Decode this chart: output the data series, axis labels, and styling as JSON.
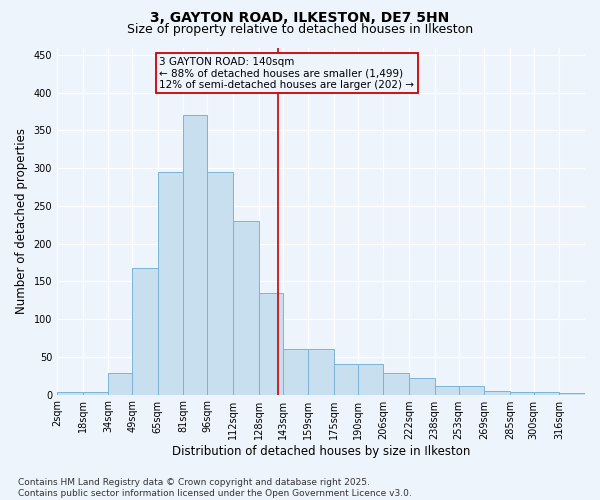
{
  "title": "3, GAYTON ROAD, ILKESTON, DE7 5HN",
  "subtitle": "Size of property relative to detached houses in Ilkeston",
  "xlabel": "Distribution of detached houses by size in Ilkeston",
  "ylabel": "Number of detached properties",
  "bar_labels": [
    "2sqm",
    "18sqm",
    "34sqm",
    "49sqm",
    "65sqm",
    "81sqm",
    "96sqm",
    "112sqm",
    "128sqm",
    "143sqm",
    "159sqm",
    "175sqm",
    "190sqm",
    "206sqm",
    "222sqm",
    "238sqm",
    "253sqm",
    "269sqm",
    "285sqm",
    "300sqm",
    "316sqm"
  ],
  "bar_values": [
    3,
    3,
    28,
    168,
    295,
    370,
    295,
    230,
    135,
    60,
    60,
    40,
    40,
    28,
    22,
    12,
    12,
    5,
    3,
    3,
    2
  ],
  "bar_color": "#c8dff0",
  "bar_edgecolor": "#7ab4d4",
  "property_line_x": 140,
  "bin_edges": [
    2,
    18,
    34,
    49,
    65,
    81,
    96,
    112,
    128,
    143,
    159,
    175,
    190,
    206,
    222,
    238,
    253,
    269,
    285,
    300,
    316,
    332
  ],
  "annotation_text": "3 GAYTON ROAD: 140sqm\n← 88% of detached houses are smaller (1,499)\n12% of semi-detached houses are larger (202) →",
  "annotation_box_color": "#cc0000",
  "ylim": [
    0,
    460
  ],
  "yticks": [
    0,
    50,
    100,
    150,
    200,
    250,
    300,
    350,
    400,
    450
  ],
  "footnote": "Contains HM Land Registry data © Crown copyright and database right 2025.\nContains public sector information licensed under the Open Government Licence v3.0.",
  "bg_color": "#eef4fb",
  "grid_color": "#ffffff",
  "title_fontsize": 10,
  "subtitle_fontsize": 9,
  "axis_label_fontsize": 8.5,
  "tick_fontsize": 7,
  "footnote_fontsize": 6.5,
  "ann_fontsize": 7.5
}
